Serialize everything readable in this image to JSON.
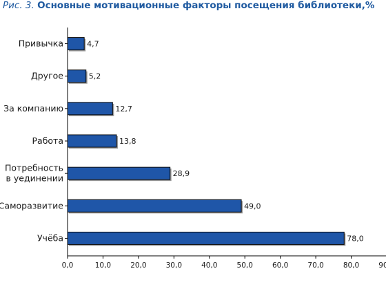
{
  "title": {
    "figure_ref": "Рис. 3.",
    "text": "Основные мотивационные факторы посещения библиотеки,%"
  },
  "colors": {
    "bar_fill": "#1f56a8",
    "bar_stroke": "#0a0a0a",
    "shadow": "#9a9a9a",
    "title": "#1f5aa0"
  },
  "chart_data": {
    "type": "bar",
    "orientation": "horizontal",
    "categories": [
      [
        "Привычка"
      ],
      [
        "Другое"
      ],
      [
        "За компанию"
      ],
      [
        "Работа"
      ],
      [
        "Потребность",
        "в уединении"
      ],
      [
        "Саморазвитие"
      ],
      [
        "Учёба"
      ]
    ],
    "values": [
      4.7,
      5.2,
      12.7,
      13.8,
      28.9,
      49.0,
      78.0
    ],
    "value_labels": [
      "4,7",
      "5,2",
      "12,7",
      "13,8",
      "28,9",
      "49,0",
      "78,0"
    ],
    "xlim": [
      0,
      90
    ],
    "xticks": [
      0,
      10,
      20,
      30,
      40,
      50,
      60,
      70,
      80,
      90
    ],
    "xtick_labels": [
      "0,0",
      "10,0",
      "20,0",
      "30,0",
      "40,0",
      "50,0",
      "60,0",
      "70,0",
      "80,0",
      "90,0"
    ],
    "grid": false,
    "legend": "none"
  }
}
